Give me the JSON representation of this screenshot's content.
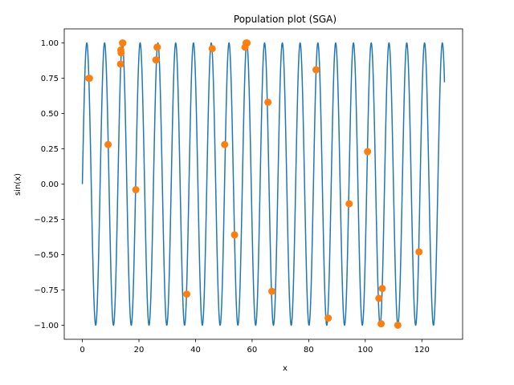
{
  "chart_data": {
    "type": "scatter",
    "title": "Population plot (SGA)",
    "xlabel": "x",
    "ylabel": "sin(x)",
    "xlim": [
      -6.4,
      134.4
    ],
    "ylim": [
      -1.1,
      1.1
    ],
    "xticks": [
      0,
      20,
      40,
      60,
      80,
      100,
      120
    ],
    "xtick_labels": [
      "0",
      "20",
      "40",
      "60",
      "80",
      "100",
      "120"
    ],
    "yticks": [
      -1.0,
      -0.75,
      -0.5,
      -0.25,
      0.0,
      0.25,
      0.5,
      0.75,
      1.0
    ],
    "ytick_labels": [
      "−1.00",
      "−0.75",
      "−0.50",
      "−0.25",
      "0.00",
      "0.25",
      "0.50",
      "0.75",
      "1.00"
    ],
    "grid": false,
    "line_series": {
      "function": "sin(x)",
      "x_range": [
        0,
        128
      ],
      "color": "#1f77b4"
    },
    "scatter_series": {
      "color": "#ff7f0e",
      "points": [
        [
          2.3,
          0.75
        ],
        [
          2.5,
          0.75
        ],
        [
          9.1,
          0.28
        ],
        [
          13.5,
          0.85
        ],
        [
          13.6,
          0.95
        ],
        [
          13.7,
          0.93
        ],
        [
          14.2,
          1.0
        ],
        [
          14.3,
          1.0
        ],
        [
          18.9,
          -0.04
        ],
        [
          26.0,
          0.88
        ],
        [
          26.1,
          0.88
        ],
        [
          26.4,
          0.97
        ],
        [
          26.5,
          0.97
        ],
        [
          36.9,
          -0.78
        ],
        [
          45.9,
          0.96
        ],
        [
          50.3,
          0.28
        ],
        [
          53.8,
          -0.36
        ],
        [
          57.5,
          0.97
        ],
        [
          57.9,
          1.0
        ],
        [
          58.0,
          1.0
        ],
        [
          58.2,
          1.0
        ],
        [
          65.6,
          0.58
        ],
        [
          67.0,
          -0.76
        ],
        [
          82.6,
          0.81
        ],
        [
          86.9,
          -0.95
        ],
        [
          94.3,
          -0.14
        ],
        [
          100.8,
          0.23
        ],
        [
          104.8,
          -0.81
        ],
        [
          105.6,
          -0.99
        ],
        [
          106.0,
          -0.74
        ],
        [
          111.5,
          -1.0
        ],
        [
          119.0,
          -0.48
        ]
      ]
    }
  }
}
